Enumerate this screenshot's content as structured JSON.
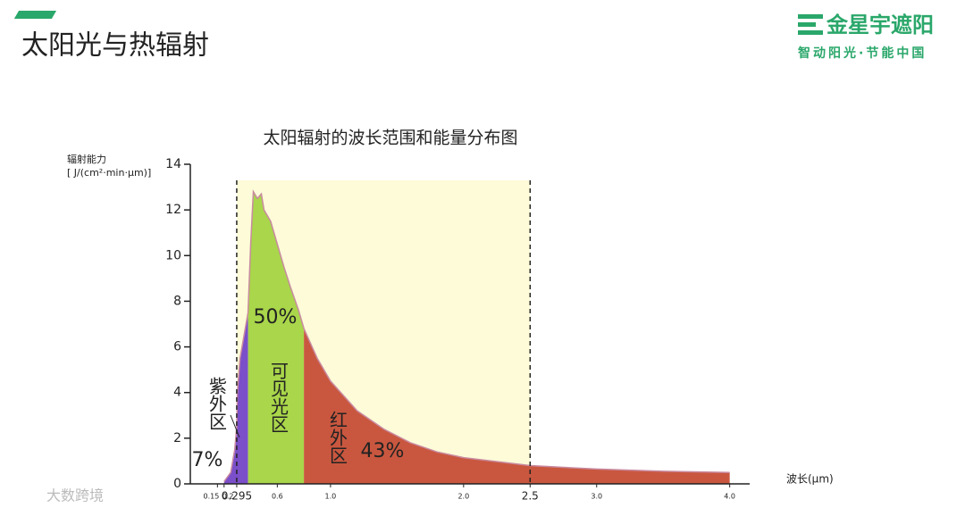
{
  "slide": {
    "title": "太阳光与热辐射",
    "logo_name": "金星宇遮阳",
    "logo_slogan": "智动阳光·节能中国",
    "watermark": "大数跨境"
  },
  "chart_data": {
    "type": "area",
    "title": "太阳辐射的波长范围和能量分布图",
    "ylabel": [
      "辐射能力",
      "[ J/(cm²·min·μm)]"
    ],
    "xlabel": "波长(μm)",
    "x": [
      0.2,
      0.25,
      0.28,
      0.295,
      0.3,
      0.32,
      0.35,
      0.38,
      0.4,
      0.42,
      0.45,
      0.48,
      0.5,
      0.55,
      0.6,
      0.65,
      0.7,
      0.76,
      0.8,
      0.9,
      1.0,
      1.2,
      1.4,
      1.6,
      1.8,
      2.0,
      2.5,
      3.0,
      3.5,
      4.0
    ],
    "values": [
      0.1,
      0.5,
      1.5,
      2.5,
      4,
      5.5,
      6.5,
      7.5,
      10.5,
      12.8,
      12.5,
      12.7,
      12,
      11.5,
      10.5,
      9.5,
      8.6,
      7.6,
      6.8,
      5.5,
      4.5,
      3.2,
      2.4,
      1.8,
      1.4,
      1.15,
      0.8,
      0.65,
      0.55,
      0.5
    ],
    "line_color": "#c98aa0",
    "band": [
      0.295,
      2.5
    ],
    "band_color": "#fdfbd8",
    "regions": [
      {
        "name": "紫外区",
        "range": [
          0.2,
          0.38
        ],
        "color": "#7b4fc9",
        "share": 7,
        "share_label": "7%"
      },
      {
        "name": "可见光区",
        "range": [
          0.38,
          0.8
        ],
        "color": "#a9d64a",
        "share": 50,
        "share_label": "50%"
      },
      {
        "name": "红外区",
        "range": [
          0.8,
          4.0
        ],
        "color": "#c9573f",
        "share": 43,
        "share_label": "43%"
      }
    ],
    "xlim": [
      0,
      4.15
    ],
    "ylim": [
      0,
      14
    ],
    "xticks": [
      0.15,
      0.2,
      0.295,
      0.6,
      {
        "value": 1,
        "label": "1.0"
      },
      {
        "value": 2,
        "label": "2.0"
      },
      2.5,
      {
        "value": 3,
        "label": "3.0"
      },
      {
        "value": 4,
        "label": "4.0"
      }
    ],
    "yticks": [
      0,
      2,
      4,
      6,
      8,
      10,
      12,
      14
    ]
  }
}
